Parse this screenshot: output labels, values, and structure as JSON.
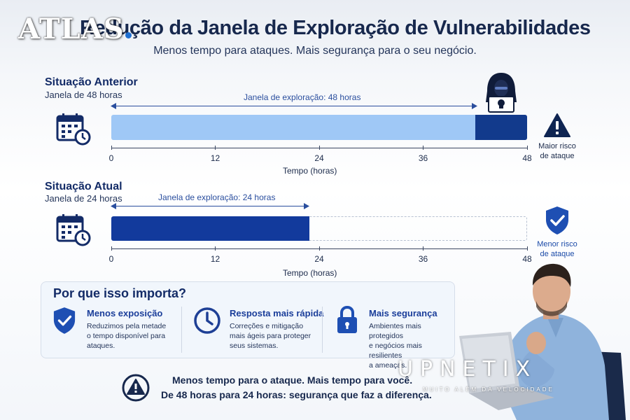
{
  "brand": {
    "atlas": "ATLAS",
    "upnetix": "UPNETIX",
    "upnetix_tagline": "MUITO ALÉM DA VELOCIDADE"
  },
  "header": {
    "title": "Redução da Janela de Exploração de Vulnerabilidades",
    "subtitle": "Menos tempo para ataques. Mais segurança para o seu negócio."
  },
  "previous": {
    "title": "Situação Anterior",
    "subtitle": "Janela de 48 horas",
    "window_label": "Janela de exploração: 48 horas",
    "window_hours": 48,
    "risk_label_line1": "Maior risco",
    "risk_label_line2": "de ataque"
  },
  "current": {
    "title": "Situação Atual",
    "subtitle": "Janela de 24 horas",
    "window_label": "Janela de exploração: 24 horas",
    "window_hours": 24,
    "risk_label_line1": "Menor risco",
    "risk_label_line2": "de ataque"
  },
  "axis": {
    "ticks": [
      "0",
      "12",
      "24",
      "36",
      "48"
    ],
    "title": "Tempo (horas)"
  },
  "why": {
    "title": "Por que isso importa?",
    "items": [
      {
        "title": "Menos exposição",
        "line1": "Reduzimos pela metade",
        "line2": "o tempo disponível para",
        "line3": "ataques.",
        "icon": "shield-check-icon"
      },
      {
        "title": "Resposta mais rápida",
        "line1": "Correções e mitigação",
        "line2": "mais ágeis para proteger",
        "line3": "seus sistemas.",
        "icon": "clock-icon"
      },
      {
        "title": "Mais segurança",
        "line1": "Ambientes mais protegidos",
        "line2": "e negócios mais resilientes",
        "line3": "a ameaças.",
        "icon": "lock-icon"
      }
    ]
  },
  "footer": {
    "line1": "Menos tempo para o ataque. Mais tempo para você.",
    "line2": "De 48 horas para 24 horas: segurança que faz a diferença."
  },
  "colors": {
    "navy": "#123a8c",
    "light_blue": "#9fc8f6",
    "title": "#17284d"
  }
}
